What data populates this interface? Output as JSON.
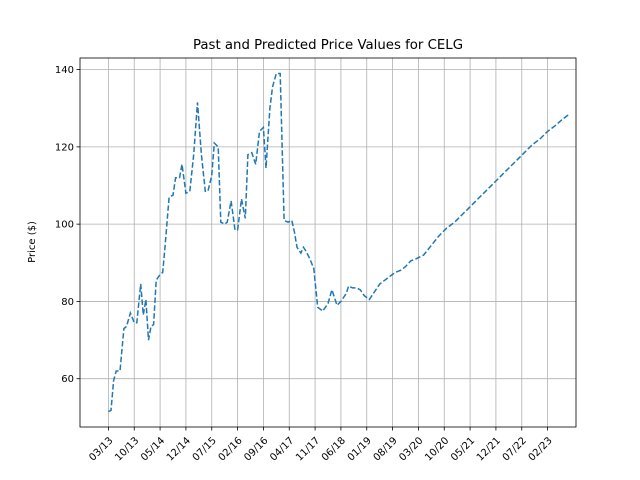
{
  "chart_data": {
    "type": "line",
    "title": "Past and Predicted Price Values for CELG",
    "xlabel": "",
    "ylabel": "Price ($)",
    "ylim": [
      47.5,
      143
    ],
    "yticks": [
      60,
      80,
      100,
      120,
      140
    ],
    "xlim": [
      -1.1,
      18.1
    ],
    "xtick_labels": [
      "03/13",
      "10/13",
      "05/14",
      "12/14",
      "07/15",
      "02/16",
      "09/16",
      "04/17",
      "11/17",
      "06/18",
      "01/19",
      "08/19",
      "03/20",
      "10/20",
      "05/21",
      "12/21",
      "07/22",
      "02/23"
    ],
    "grid": true,
    "legend": "none",
    "series_color": "#1f77b4",
    "line_style": "dashed",
    "series": [
      {
        "x": [
          0,
          0.1,
          0.2,
          0.3,
          0.45,
          0.6,
          0.7,
          0.85,
          1.0,
          1.1,
          1.25,
          1.35,
          1.45,
          1.55,
          1.65,
          1.75,
          1.85,
          2.0,
          2.1,
          2.2,
          2.35,
          2.5,
          2.6,
          2.75,
          2.85,
          3.0,
          3.15,
          3.3,
          3.45,
          3.6,
          3.75,
          3.85,
          4.0,
          4.1,
          4.25,
          4.35,
          4.5,
          4.6,
          4.75,
          4.9,
          5.0,
          5.15,
          5.3,
          5.4,
          5.55,
          5.7,
          5.85,
          6.0,
          6.1,
          6.25,
          6.35,
          6.5,
          6.65,
          6.8,
          6.95,
          7.1,
          7.2,
          7.3,
          7.45,
          7.55,
          7.65,
          7.8,
          7.95,
          8.1,
          8.3,
          8.5,
          8.65,
          8.85,
          9.0,
          9.2,
          9.3,
          9.45,
          9.6,
          9.75,
          9.9,
          10.1,
          10.3,
          10.5,
          10.7,
          10.9,
          11.1,
          11.3,
          11.5,
          11.7,
          11.9,
          12.2,
          12.5,
          12.8,
          13.1,
          13.4,
          13.7,
          14.0,
          14.3,
          14.6,
          14.9,
          15.2,
          15.5,
          15.8,
          16.1,
          16.4,
          16.7,
          17.0,
          17.3,
          17.55,
          17.85
        ],
        "y": [
          51.5,
          51.8,
          59.5,
          62.0,
          62.0,
          73.0,
          73.5,
          77.0,
          74.5,
          74.5,
          84.5,
          76.5,
          80.5,
          70.0,
          73.5,
          74.0,
          85.5,
          87.0,
          87.5,
          95.0,
          107.0,
          107.5,
          112.0,
          112.0,
          115.5,
          108.0,
          108.5,
          118.0,
          131.5,
          118.0,
          108.5,
          108.5,
          112.5,
          121.0,
          120.0,
          100.5,
          100.0,
          100.5,
          106.0,
          98.5,
          98.5,
          106.5,
          101.5,
          118.0,
          118.5,
          115.5,
          124.0,
          125.0,
          114.5,
          130.0,
          135.5,
          139.0,
          139.0,
          101.0,
          100.5,
          101.0,
          98.0,
          94.0,
          92.5,
          94.0,
          93.0,
          91.0,
          88.5,
          78.5,
          77.5,
          79.5,
          83.0,
          79.0,
          80.0,
          82.0,
          84.0,
          83.5,
          83.5,
          83.0,
          81.5,
          80.5,
          82.5,
          84.5,
          85.5,
          86.5,
          87.5,
          88.0,
          89.0,
          90.5,
          91.0,
          92.0,
          94.5,
          97.0,
          99.0,
          100.5,
          102.5,
          104.5,
          106.5,
          108.5,
          110.5,
          112.5,
          114.5,
          116.5,
          118.5,
          120.5,
          122.0,
          124.0,
          125.5,
          127.0,
          128.5
        ]
      }
    ]
  }
}
